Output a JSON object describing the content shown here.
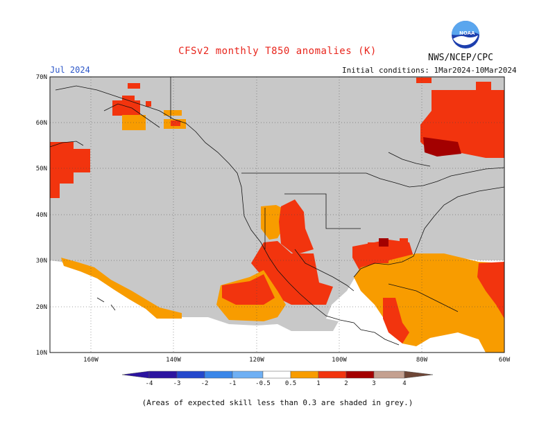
{
  "title": "CFSv2 monthly T850 anomalies (K)",
  "valid_month": "Jul 2024",
  "agency": "NWS/NCEP/CPC",
  "init_conditions": "Initial conditions: 1Mar2024-10Mar2024",
  "footnote": "(Areas of expected skill less than 0.3 are shaded in grey.)",
  "logo": "noaa-logo",
  "map": {
    "lon_range": [
      -170,
      -60
    ],
    "lat_range": [
      10,
      70
    ],
    "lat_labels": [
      "70N",
      "60N",
      "50N",
      "40N",
      "30N",
      "20N",
      "10N"
    ],
    "lon_labels": [
      "160W",
      "140W",
      "120W",
      "100W",
      "80W",
      "60W"
    ],
    "grid": "dotted"
  },
  "colorbar": {
    "labels": [
      "-4",
      "-3",
      "-2",
      "-1",
      "-0.5",
      "0.5",
      "1",
      "2",
      "3",
      "4"
    ],
    "colors": [
      "#2c14a0",
      "#2448cc",
      "#3a86e8",
      "#6fb0f4",
      "#ffffff",
      "#f89c00",
      "#f2340e",
      "#a30000",
      "#c4a090",
      "#6e4636"
    ]
  },
  "legend_colors": {
    "low_skill": "#c8c8c8",
    "ocean_no_data": "#ffffff",
    "anom_05_1": "#f89c00",
    "anom_1_2": "#f2340e",
    "anom_2_3": "#a30000"
  }
}
